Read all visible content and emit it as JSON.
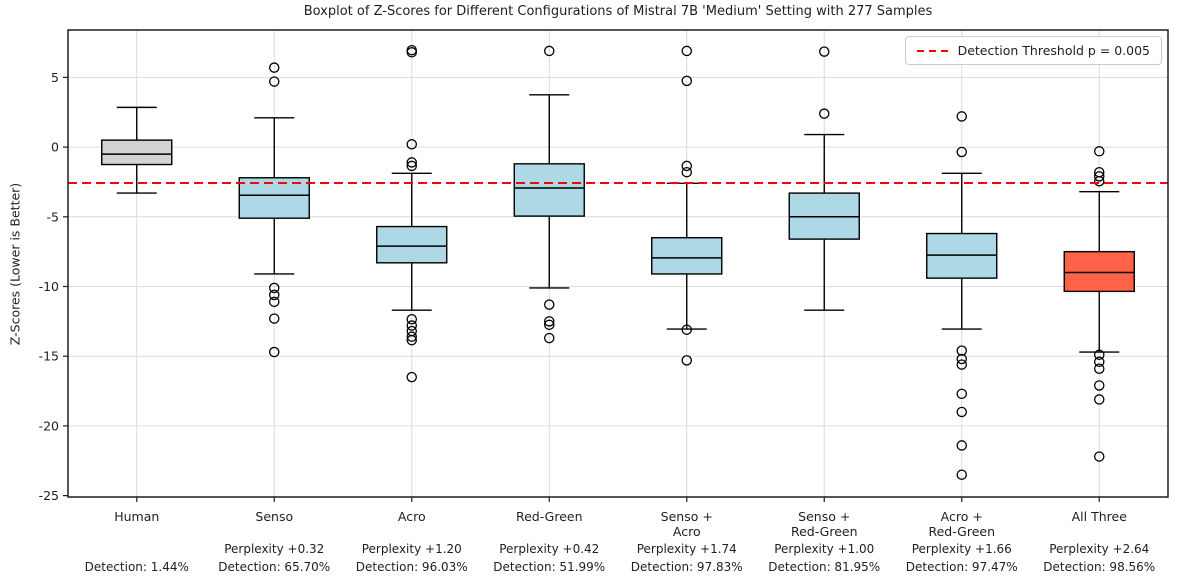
{
  "chart_data": {
    "type": "boxplot",
    "title": "Boxplot of Z-Scores for Different Configurations of Mistral 7B 'Medium' Setting with 277 Samples",
    "ylabel": "Z-Scores (Lower is Better)",
    "ylim": [
      -25.1,
      8.4
    ],
    "yticks": [
      5,
      0,
      -5,
      -10,
      -15,
      -20,
      -25
    ],
    "grid": true,
    "legend_position": "upper right",
    "threshold": {
      "value": -2.576,
      "label": "Detection Threshold p = 0.005",
      "color": "#ff0000",
      "style": "dashed"
    },
    "colors": {
      "human_box": "#d3d3d3",
      "config_box": "#add8e6",
      "all_three_box": "#ff6347",
      "gridline": "#dcdcdc",
      "spine": "#1f1f1f"
    },
    "boxes": [
      {
        "label_lines": [
          "Human"
        ],
        "perplexity": "",
        "detection": "Detection: 1.44%",
        "color": "#d3d3d3",
        "whisker_low": -3.3,
        "q1": -1.25,
        "median": -0.5,
        "q3": 0.5,
        "whisker_high": 2.85,
        "outliers": []
      },
      {
        "label_lines": [
          "Senso"
        ],
        "perplexity": "Perplexity +0.32",
        "detection": "Detection: 65.70%",
        "color": "#add8e6",
        "whisker_low": -9.1,
        "q1": -5.1,
        "median": -3.45,
        "q3": -2.2,
        "whisker_high": 2.1,
        "outliers": [
          5.7,
          4.7,
          -10.1,
          -10.6,
          -11.1,
          -12.3,
          -14.7
        ]
      },
      {
        "label_lines": [
          "Acro"
        ],
        "perplexity": "Perplexity +1.20",
        "detection": "Detection: 96.03%",
        "color": "#add8e6",
        "whisker_low": -11.7,
        "q1": -8.3,
        "median": -7.1,
        "q3": -5.7,
        "whisker_high": -1.88,
        "outliers": [
          6.95,
          6.8,
          0.2,
          -1.1,
          -1.35,
          -12.35,
          -12.8,
          -13.2,
          -13.6,
          -13.85,
          -16.5
        ]
      },
      {
        "label_lines": [
          "Red-Green"
        ],
        "perplexity": "Perplexity +0.42",
        "detection": "Detection: 51.99%",
        "color": "#add8e6",
        "whisker_low": -10.1,
        "q1": -4.95,
        "median": -2.93,
        "q3": -1.2,
        "whisker_high": 3.75,
        "outliers": [
          6.9,
          -11.3,
          -12.5,
          -12.75,
          -13.7
        ]
      },
      {
        "label_lines": [
          "Senso +",
          "Acro"
        ],
        "perplexity": "Perplexity +1.74",
        "detection": "Detection: 97.83%",
        "color": "#add8e6",
        "whisker_low": -13.05,
        "q1": -9.1,
        "median": -7.95,
        "q3": -6.5,
        "whisker_high": -2.6,
        "outliers": [
          6.9,
          4.75,
          -1.35,
          -1.8,
          -13.1,
          -15.3
        ]
      },
      {
        "label_lines": [
          "Senso +",
          "Red-Green"
        ],
        "perplexity": "Perplexity +1.00",
        "detection": "Detection: 81.95%",
        "color": "#add8e6",
        "whisker_low": -11.7,
        "q1": -6.6,
        "median": -5.0,
        "q3": -3.3,
        "whisker_high": 0.9,
        "outliers": [
          6.85,
          2.4
        ]
      },
      {
        "label_lines": [
          "Acro +",
          "Red-Green"
        ],
        "perplexity": "Perplexity +1.66",
        "detection": "Detection: 97.47%",
        "color": "#add8e6",
        "whisker_low": -13.05,
        "q1": -9.4,
        "median": -7.75,
        "q3": -6.2,
        "whisker_high": -1.88,
        "outliers": [
          2.2,
          -0.35,
          -14.6,
          -15.2,
          -15.6,
          -17.7,
          -19.0,
          -21.4,
          -23.5
        ]
      },
      {
        "label_lines": [
          "All Three"
        ],
        "perplexity": "Perplexity +2.64",
        "detection": "Detection: 98.56%",
        "color": "#ff6347",
        "whisker_low": -14.7,
        "q1": -10.35,
        "median": -9.0,
        "q3": -7.5,
        "whisker_high": -3.2,
        "outliers": [
          -0.3,
          -1.8,
          -2.1,
          -2.45,
          -14.9,
          -15.4,
          -15.9,
          -17.1,
          -18.1,
          -22.2
        ]
      }
    ]
  }
}
